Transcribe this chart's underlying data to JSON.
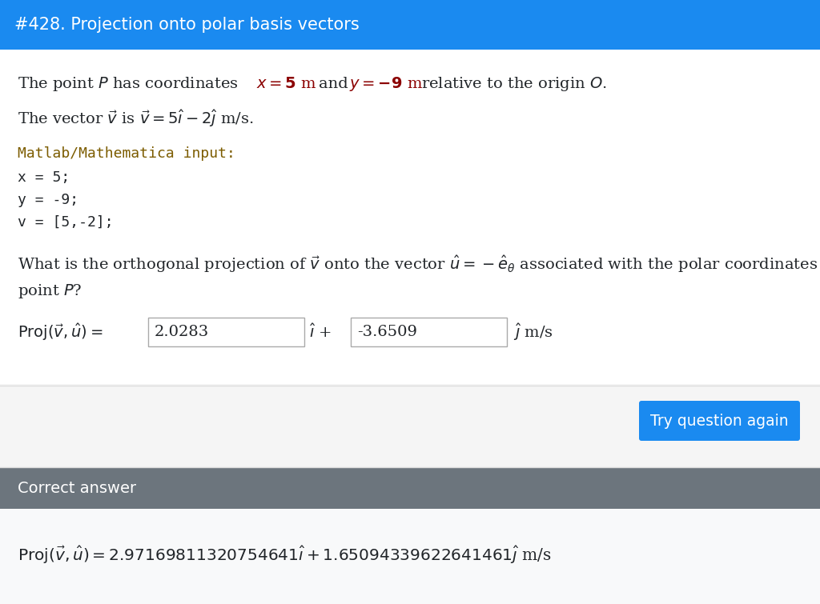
{
  "header_text": "#428. Projection onto polar basis vectors",
  "header_bg": "#1a8af0",
  "header_text_color": "#ffffff",
  "body_bg": "#ffffff",
  "matlab_lines": [
    "x = 5;",
    "y = -9;",
    "v = [5,-2];"
  ],
  "box1_value": "2.0283",
  "box2_value": "-3.6509",
  "button_text": "Try question again",
  "button_bg": "#1a8af0",
  "correct_header_bg": "#6c757d",
  "correct_header_text": "Correct answer",
  "body_text_color": "#212529",
  "matlab_text_color": "#7c5c00",
  "dark_red": "#8B0000"
}
